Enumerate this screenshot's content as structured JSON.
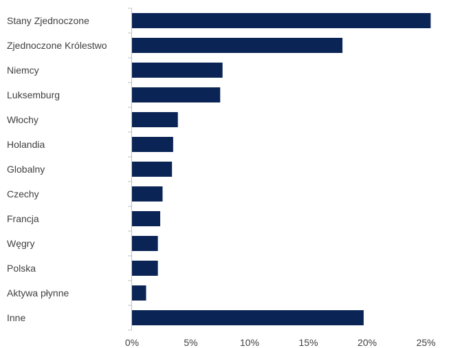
{
  "chart_data": {
    "type": "bar",
    "orientation": "horizontal",
    "categories": [
      "Stany Zjednoczone",
      "Zjednoczone Królestwo",
      "Niemcy",
      "Luksemburg",
      "Włochy",
      "Holandia",
      "Globalny",
      "Czechy",
      "Francja",
      "Węgry",
      "Polska",
      "Aktywa płynne",
      "Inne"
    ],
    "values": [
      25.4,
      17.9,
      7.7,
      7.5,
      3.9,
      3.5,
      3.4,
      2.6,
      2.4,
      2.2,
      2.2,
      1.2,
      19.7
    ],
    "x_ticks": [
      "0%",
      "5%",
      "10%",
      "15%",
      "20%",
      "25%"
    ],
    "xlim": [
      0,
      29
    ],
    "grid": false,
    "bar_color": "#0a2456",
    "title": "",
    "xlabel": "",
    "ylabel": ""
  }
}
